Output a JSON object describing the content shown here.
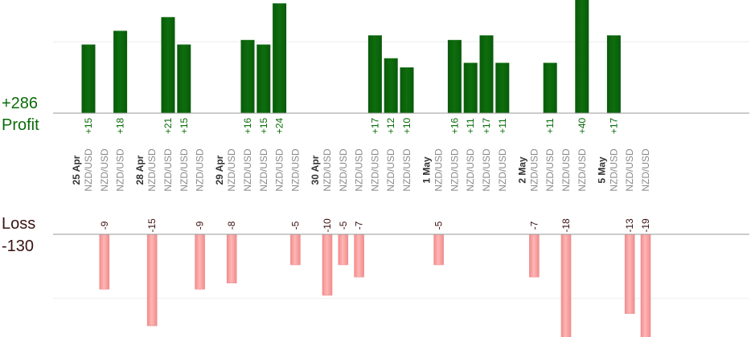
{
  "summary": {
    "profit_total": "+286",
    "profit_label": "Profit",
    "loss_label": "Loss",
    "loss_total": "-130"
  },
  "colors": {
    "profit_bar": "#0d6e0d",
    "profit_text": "#0a6b0a",
    "loss_bar": "#ffb6b6",
    "loss_bar_edge": "#f08c8c",
    "loss_text": "#3a1212",
    "grid": "#eeeeee",
    "axis": "#9a9a9a",
    "pair_text": "#8a8a8a",
    "date_text": "#333333"
  },
  "chart_data": {
    "type": "bar",
    "pair": "NZD/USD",
    "days": [
      {
        "label": "25 Apr",
        "trades": [
          15,
          -9,
          18
        ]
      },
      {
        "label": "28 Apr",
        "trades": [
          -15,
          21,
          15,
          -9
        ]
      },
      {
        "label": "29 Apr",
        "trades": [
          -8,
          16,
          15,
          24,
          -5
        ]
      },
      {
        "label": "30 Apr",
        "trades": [
          -10,
          -5,
          -7,
          17,
          12,
          10
        ]
      },
      {
        "label": "1 May",
        "trades": [
          -5,
          16,
          11,
          17,
          11
        ]
      },
      {
        "label": "2 May",
        "trades": [
          -7,
          11,
          -18,
          40
        ]
      },
      {
        "label": "5 May",
        "trades": [
          17,
          -13,
          -19
        ]
      }
    ]
  }
}
